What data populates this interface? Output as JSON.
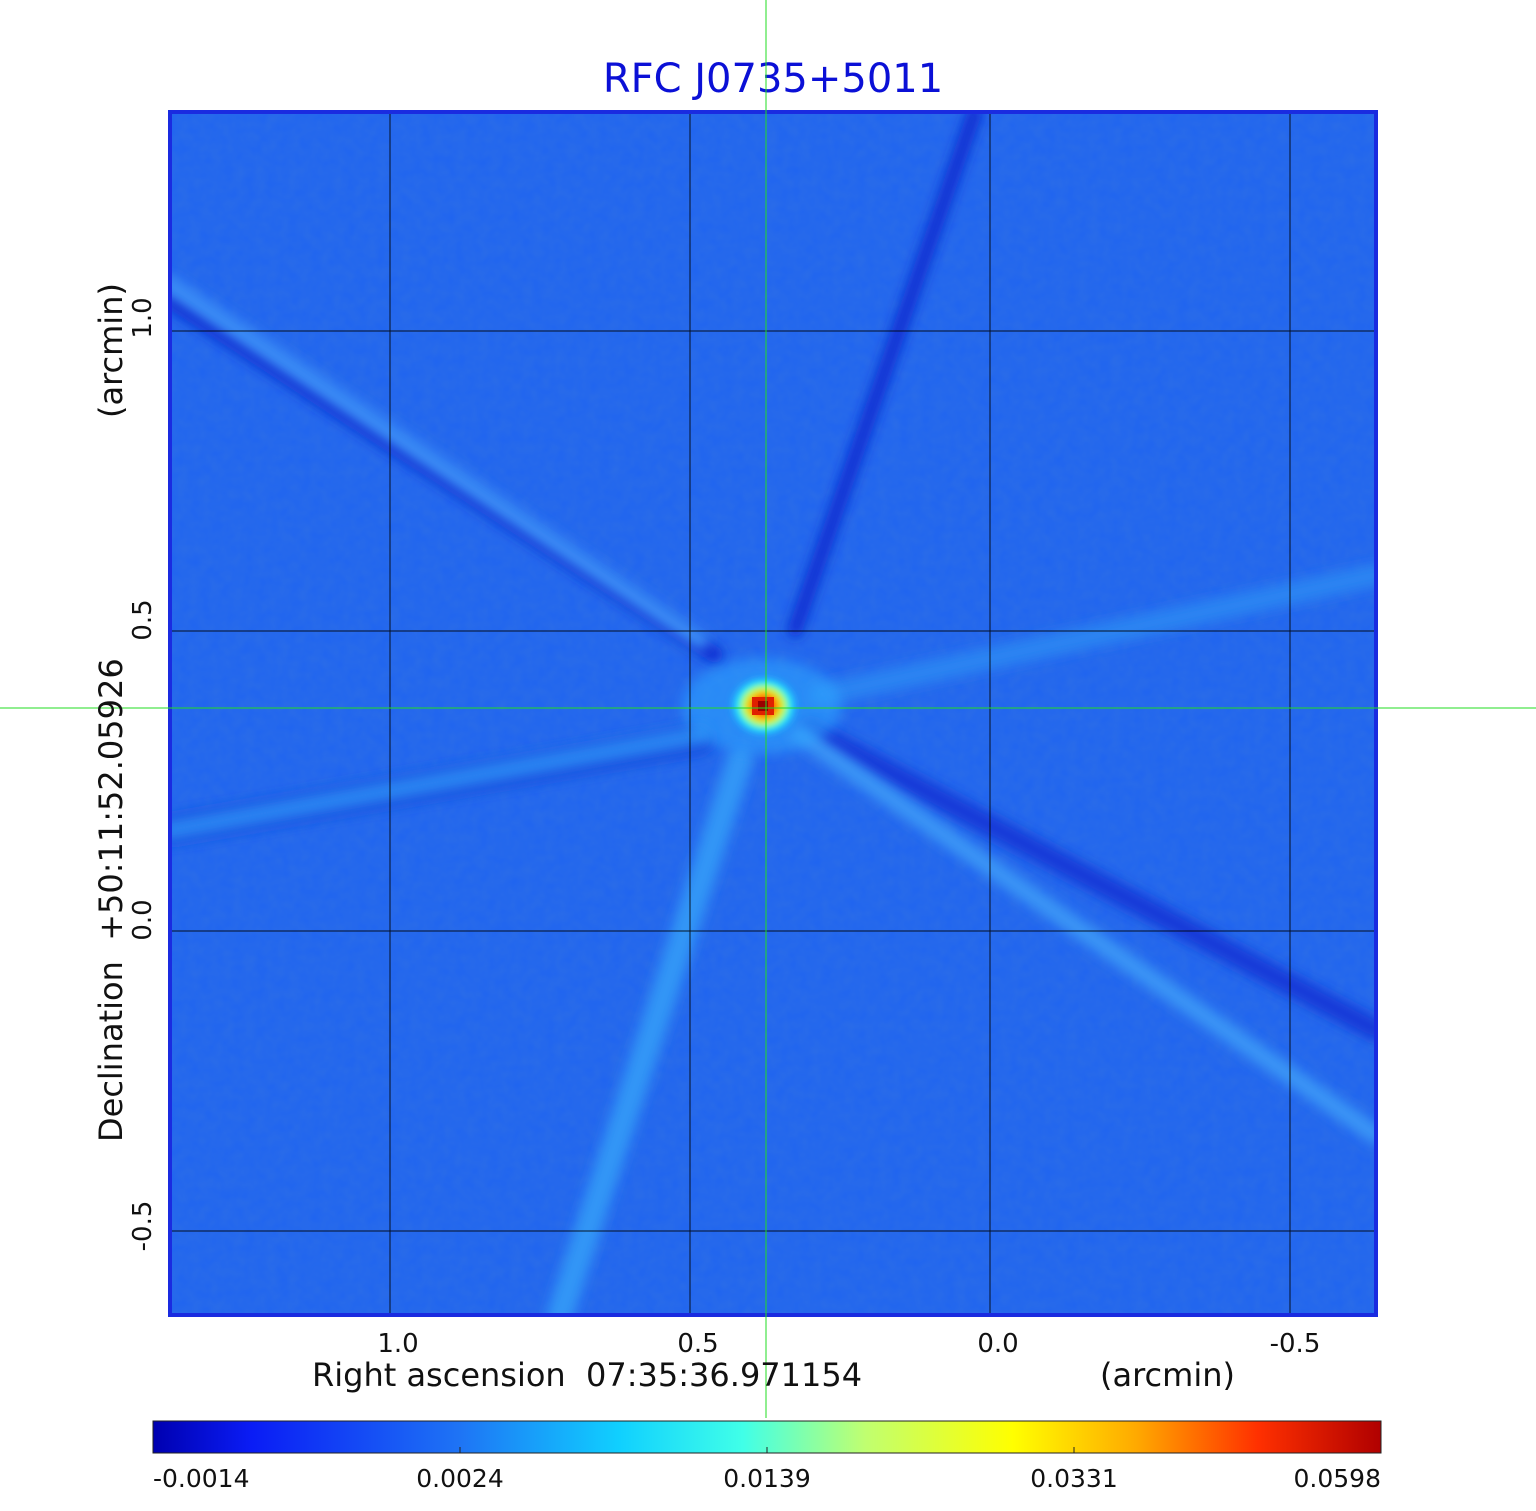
{
  "title": "RFC J0735+5011",
  "x_axis": {
    "label": "Right ascension  07:35:36.971154",
    "unit": "(arcmin)",
    "ticks": [
      "1.0",
      "0.5",
      "0.0",
      "-0.5"
    ]
  },
  "y_axis": {
    "label": "Declination  +50:11:52.05926",
    "unit": "(arcmin)",
    "ticks": [
      "1.0",
      "0.5",
      "0.0",
      "-0.5"
    ]
  },
  "colorbar": {
    "ticks": [
      "-0.0014",
      "0.0024",
      "0.0139",
      "0.0331",
      "0.0598"
    ]
  },
  "colors": {
    "background_blue": "#1f64f0",
    "frame": "#1a2be0",
    "crosshair": "#22dd22",
    "grid": "#000000"
  }
}
